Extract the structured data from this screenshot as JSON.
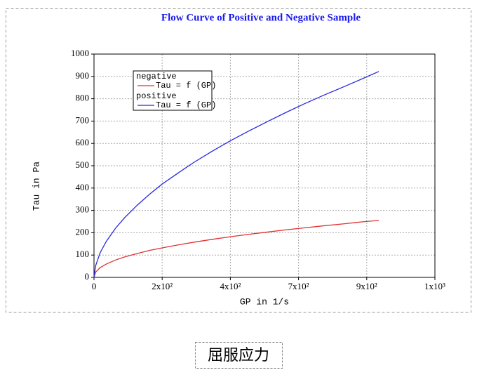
{
  "chart_data": {
    "type": "line",
    "title": "Flow Curve of Positive and Negative Sample",
    "x_label": "GP in 1/s",
    "y_label": "Tau in Pa",
    "x": [
      0,
      5,
      20,
      40,
      70,
      100,
      140,
      180,
      220,
      270,
      320,
      380,
      440,
      500,
      560,
      620,
      680,
      740,
      800,
      860,
      919
    ],
    "series": [
      {
        "name": "negative",
        "legend_label": "Tau = f (GP)",
        "color": "#e03030",
        "values": [
          0,
          23,
          44,
          60,
          78,
          92,
          107,
          121,
          132,
          145,
          157,
          170,
          182,
          193,
          203,
          213,
          222,
          231,
          239,
          248,
          255
        ]
      },
      {
        "name": "positive",
        "legend_label": "Tau = f (GP)",
        "color": "#2828e0",
        "values": [
          0,
          51,
          111,
          162,
          221,
          269,
          324,
          373,
          418,
          466,
          513,
          564,
          612,
          656,
          698,
          739,
          778,
          815,
          850,
          886,
          922
        ]
      }
    ],
    "xlim": [
      0,
      1100
    ],
    "xticks": [
      0,
      {
        "value": 220,
        "label": "2x10²"
      },
      {
        "value": 440,
        "label": "4x10²"
      },
      {
        "value": 660,
        "label": "7x10²"
      },
      {
        "value": 880,
        "label": "9x10²"
      },
      {
        "value": 1100,
        "label": "1x10³"
      }
    ],
    "ylim": [
      0,
      1000
    ],
    "yticks": [
      0,
      100,
      200,
      300,
      400,
      500,
      600,
      700,
      800,
      900,
      1000
    ],
    "grid": true,
    "legend": "upper left",
    "caption": "屈服应力"
  }
}
